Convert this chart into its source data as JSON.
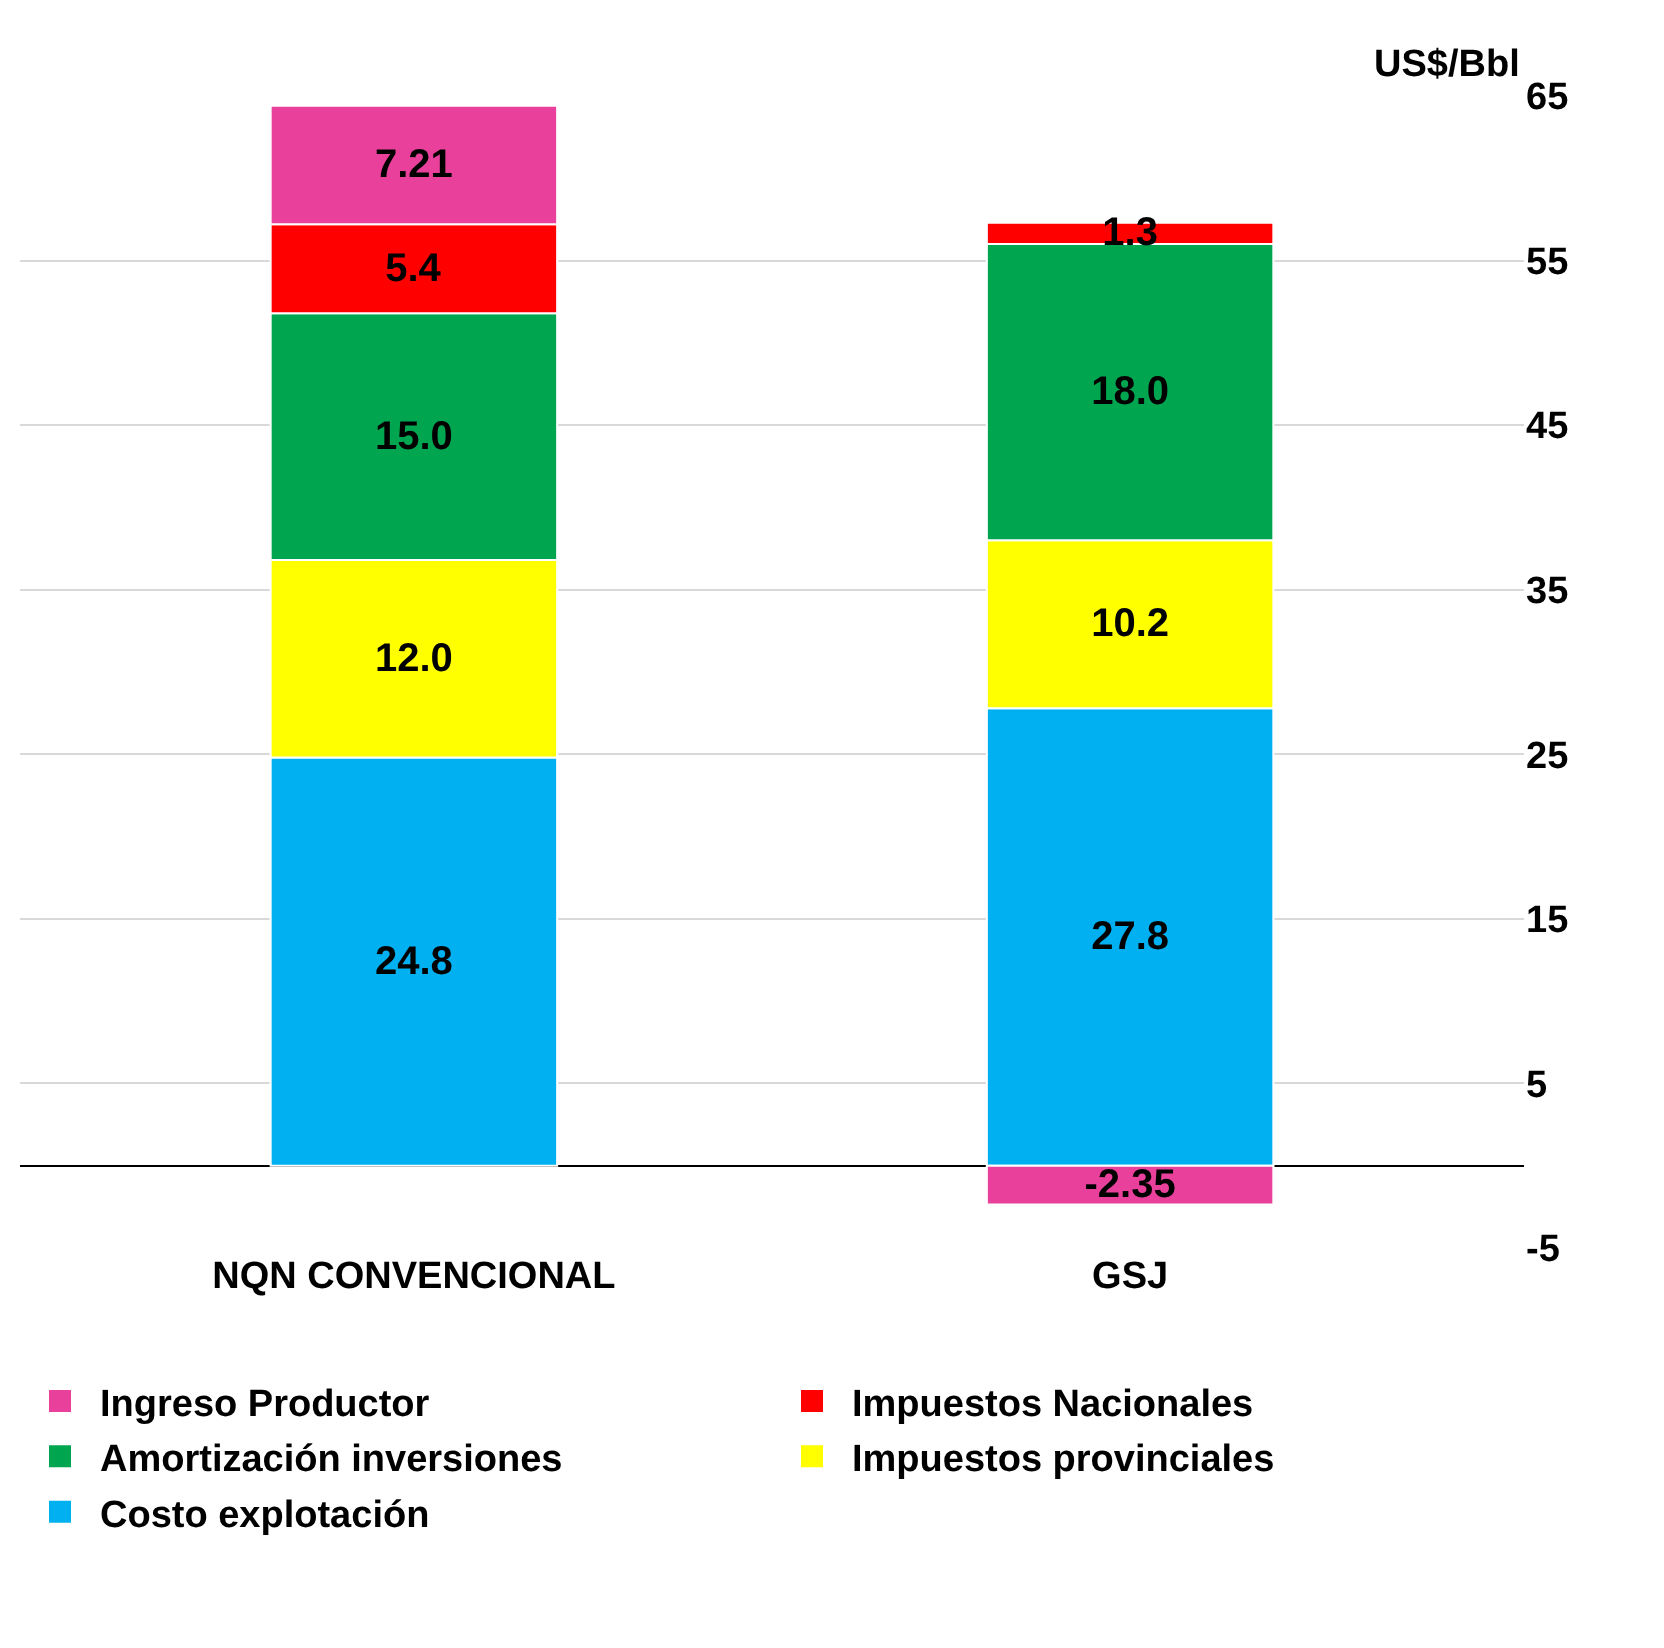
{
  "chart_data": {
    "type": "bar",
    "stacked": true,
    "ylabel": "US$/Bbl",
    "categories": [
      "NQN CONVENCIONAL",
      "GSJ"
    ],
    "series": [
      {
        "name": "Costo explotación",
        "color": "#00b0f0",
        "values": [
          24.8,
          27.8
        ],
        "value_labels": [
          "24.8",
          "27.8"
        ]
      },
      {
        "name": "Impuestos provinciales",
        "color": "#ffff00",
        "values": [
          12.0,
          10.2
        ],
        "value_labels": [
          "12.0",
          "10.2"
        ]
      },
      {
        "name": "Amortización inversiones",
        "color": "#00a550",
        "values": [
          15.0,
          18.0
        ],
        "value_labels": [
          "15.0",
          "18.0"
        ]
      },
      {
        "name": "Impuestos Nacionales",
        "color": "#ff0000",
        "values": [
          5.4,
          1.3
        ],
        "value_labels": [
          "5.4",
          "1.3"
        ]
      },
      {
        "name": "Ingreso Productor",
        "color": "#e8409b",
        "values": [
          7.21,
          -2.35
        ],
        "value_labels": [
          "7.21",
          "-2.35"
        ]
      }
    ],
    "ylim": [
      -5,
      65
    ],
    "yticks": [
      -5,
      5,
      15,
      25,
      35,
      45,
      55,
      65
    ],
    "grid": "y",
    "legend": "bottom"
  }
}
